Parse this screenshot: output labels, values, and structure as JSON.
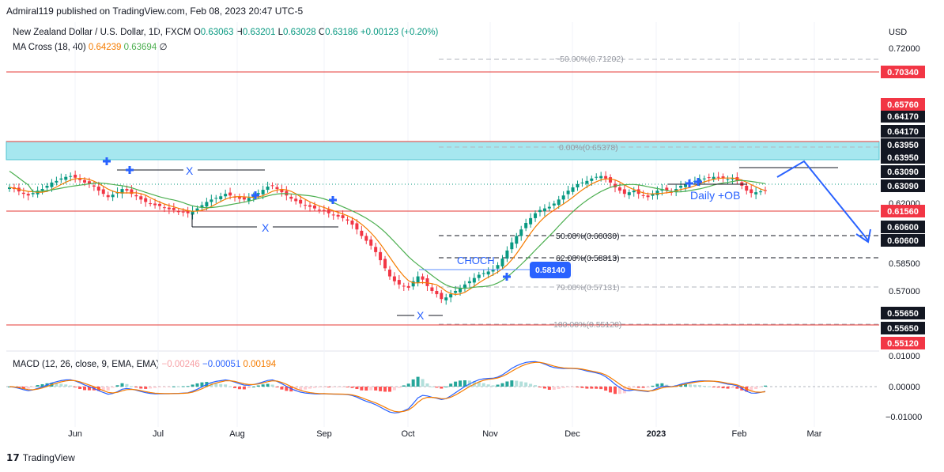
{
  "header": {
    "publisher": "Admiral119 published on TradingView.com, Feb 08, 2023 20:47 UTC-5"
  },
  "legend": {
    "symbol": "New Zealand Dollar / U.S. Dollar, 1D, FXCM",
    "o_label": "O",
    "o": "0.63063",
    "h_label": "H",
    "h": "0.63201",
    "l_label": "L",
    "l": "0.63028",
    "c_label": "C",
    "c": "0.63186",
    "chg": "+0.00123 (+0.20%)",
    "ma_label": "MA Cross (18, 40)",
    "ma18": "0.64239",
    "ma40": "0.63694",
    "ma_extra": "∅",
    "macd_label": "MACD (12, 26, close, 9, EMA, EMA)",
    "macd_hist": "−0.00246",
    "macd_line": "−0.00051",
    "macd_signal": "0.00194"
  },
  "footer": {
    "brand": "TradingView"
  },
  "chart_data": {
    "type": "candlestick",
    "currency": "USD",
    "x_labels": [
      "Jun",
      "Jul",
      "Aug",
      "Sep",
      "Oct",
      "Nov",
      "Dec",
      "2023",
      "Feb",
      "Mar"
    ],
    "y_ticks": [
      "0.72000",
      "0.62000",
      "0.58500",
      "0.57000",
      "0.00000"
    ],
    "y_badges_dark": [
      "0.64170",
      "0.64170",
      "0.63950",
      "0.63950",
      "0.63090",
      "0.63090",
      "0.60600",
      "0.60600",
      "0.55650",
      "0.55650"
    ],
    "y_badges_red": [
      "0.70340",
      "0.65760",
      "0.61560",
      "0.55120"
    ],
    "macd_ticks": [
      "0.01000",
      "0.00000",
      "−0.01000"
    ],
    "fib_levels": [
      {
        "label": "−50.00%(0.71202)",
        "value": 0.71202
      },
      {
        "label": "0.00%(0.65378)",
        "value": 0.65378
      },
      {
        "label": "50.00%(0.60030)",
        "value": 0.6003
      },
      {
        "label": "62.00%(0.58813)",
        "value": 0.58813
      },
      {
        "label": "79.00%(0.57131)",
        "value": 0.57131
      },
      {
        "label": "100.00%(0.55120)",
        "value": 0.5512
      }
    ],
    "horizontal_lines": [
      0.7034,
      0.6576,
      0.6156,
      0.5512
    ],
    "supply_zone": [
      0.6417,
      0.6395
    ],
    "annotations": {
      "x_mark": "X",
      "choch": "CHOCH",
      "price_badge": "0.58140",
      "ob": "Daily +OB"
    },
    "close_series": [
      0.634,
      0.633,
      0.6315,
      0.63,
      0.629,
      0.6305,
      0.632,
      0.633,
      0.635,
      0.637,
      0.638,
      0.6395,
      0.6405,
      0.641,
      0.64,
      0.6385,
      0.637,
      0.636,
      0.6345,
      0.632,
      0.63,
      0.628,
      0.6295,
      0.631,
      0.633,
      0.632,
      0.63,
      0.6285,
      0.6265,
      0.625,
      0.624,
      0.623,
      0.6225,
      0.6215,
      0.6205,
      0.62,
      0.619,
      0.6185,
      0.618,
      0.6195,
      0.621,
      0.623,
      0.625,
      0.6265,
      0.6275,
      0.6285,
      0.63,
      0.629,
      0.628,
      0.627,
      0.6265,
      0.6275,
      0.629,
      0.6305,
      0.6325,
      0.6345,
      0.635,
      0.633,
      0.631,
      0.629,
      0.627,
      0.6255,
      0.624,
      0.623,
      0.622,
      0.621,
      0.62,
      0.6195,
      0.618,
      0.617,
      0.616,
      0.615,
      0.6135,
      0.611,
      0.608,
      0.604,
      0.601,
      0.598,
      0.594,
      0.589,
      0.584,
      0.579,
      0.576,
      0.574,
      0.573,
      0.572,
      0.576,
      0.579,
      0.577,
      0.573,
      0.57,
      0.568,
      0.565,
      0.566,
      0.568,
      0.57,
      0.572,
      0.574,
      0.576,
      0.578,
      0.58,
      0.581,
      0.582,
      0.583,
      0.586,
      0.59,
      0.595,
      0.6,
      0.604,
      0.608,
      0.612,
      0.615,
      0.618,
      0.62,
      0.621,
      0.622,
      0.624,
      0.6265,
      0.629,
      0.632,
      0.634,
      0.636,
      0.637,
      0.638,
      0.6395,
      0.6405,
      0.641,
      0.6395,
      0.637,
      0.634,
      0.632,
      0.63,
      0.631,
      0.632,
      0.63,
      0.629,
      0.628,
      0.63,
      0.632,
      0.633,
      0.632,
      0.631,
      0.633,
      0.635,
      0.636,
      0.637,
      0.638,
      0.639,
      0.6395,
      0.64,
      0.6405,
      0.64,
      0.6395,
      0.639,
      0.6395,
      0.638,
      0.635,
      0.632,
      0.6305,
      0.631,
      0.6315,
      0.6319
    ]
  }
}
